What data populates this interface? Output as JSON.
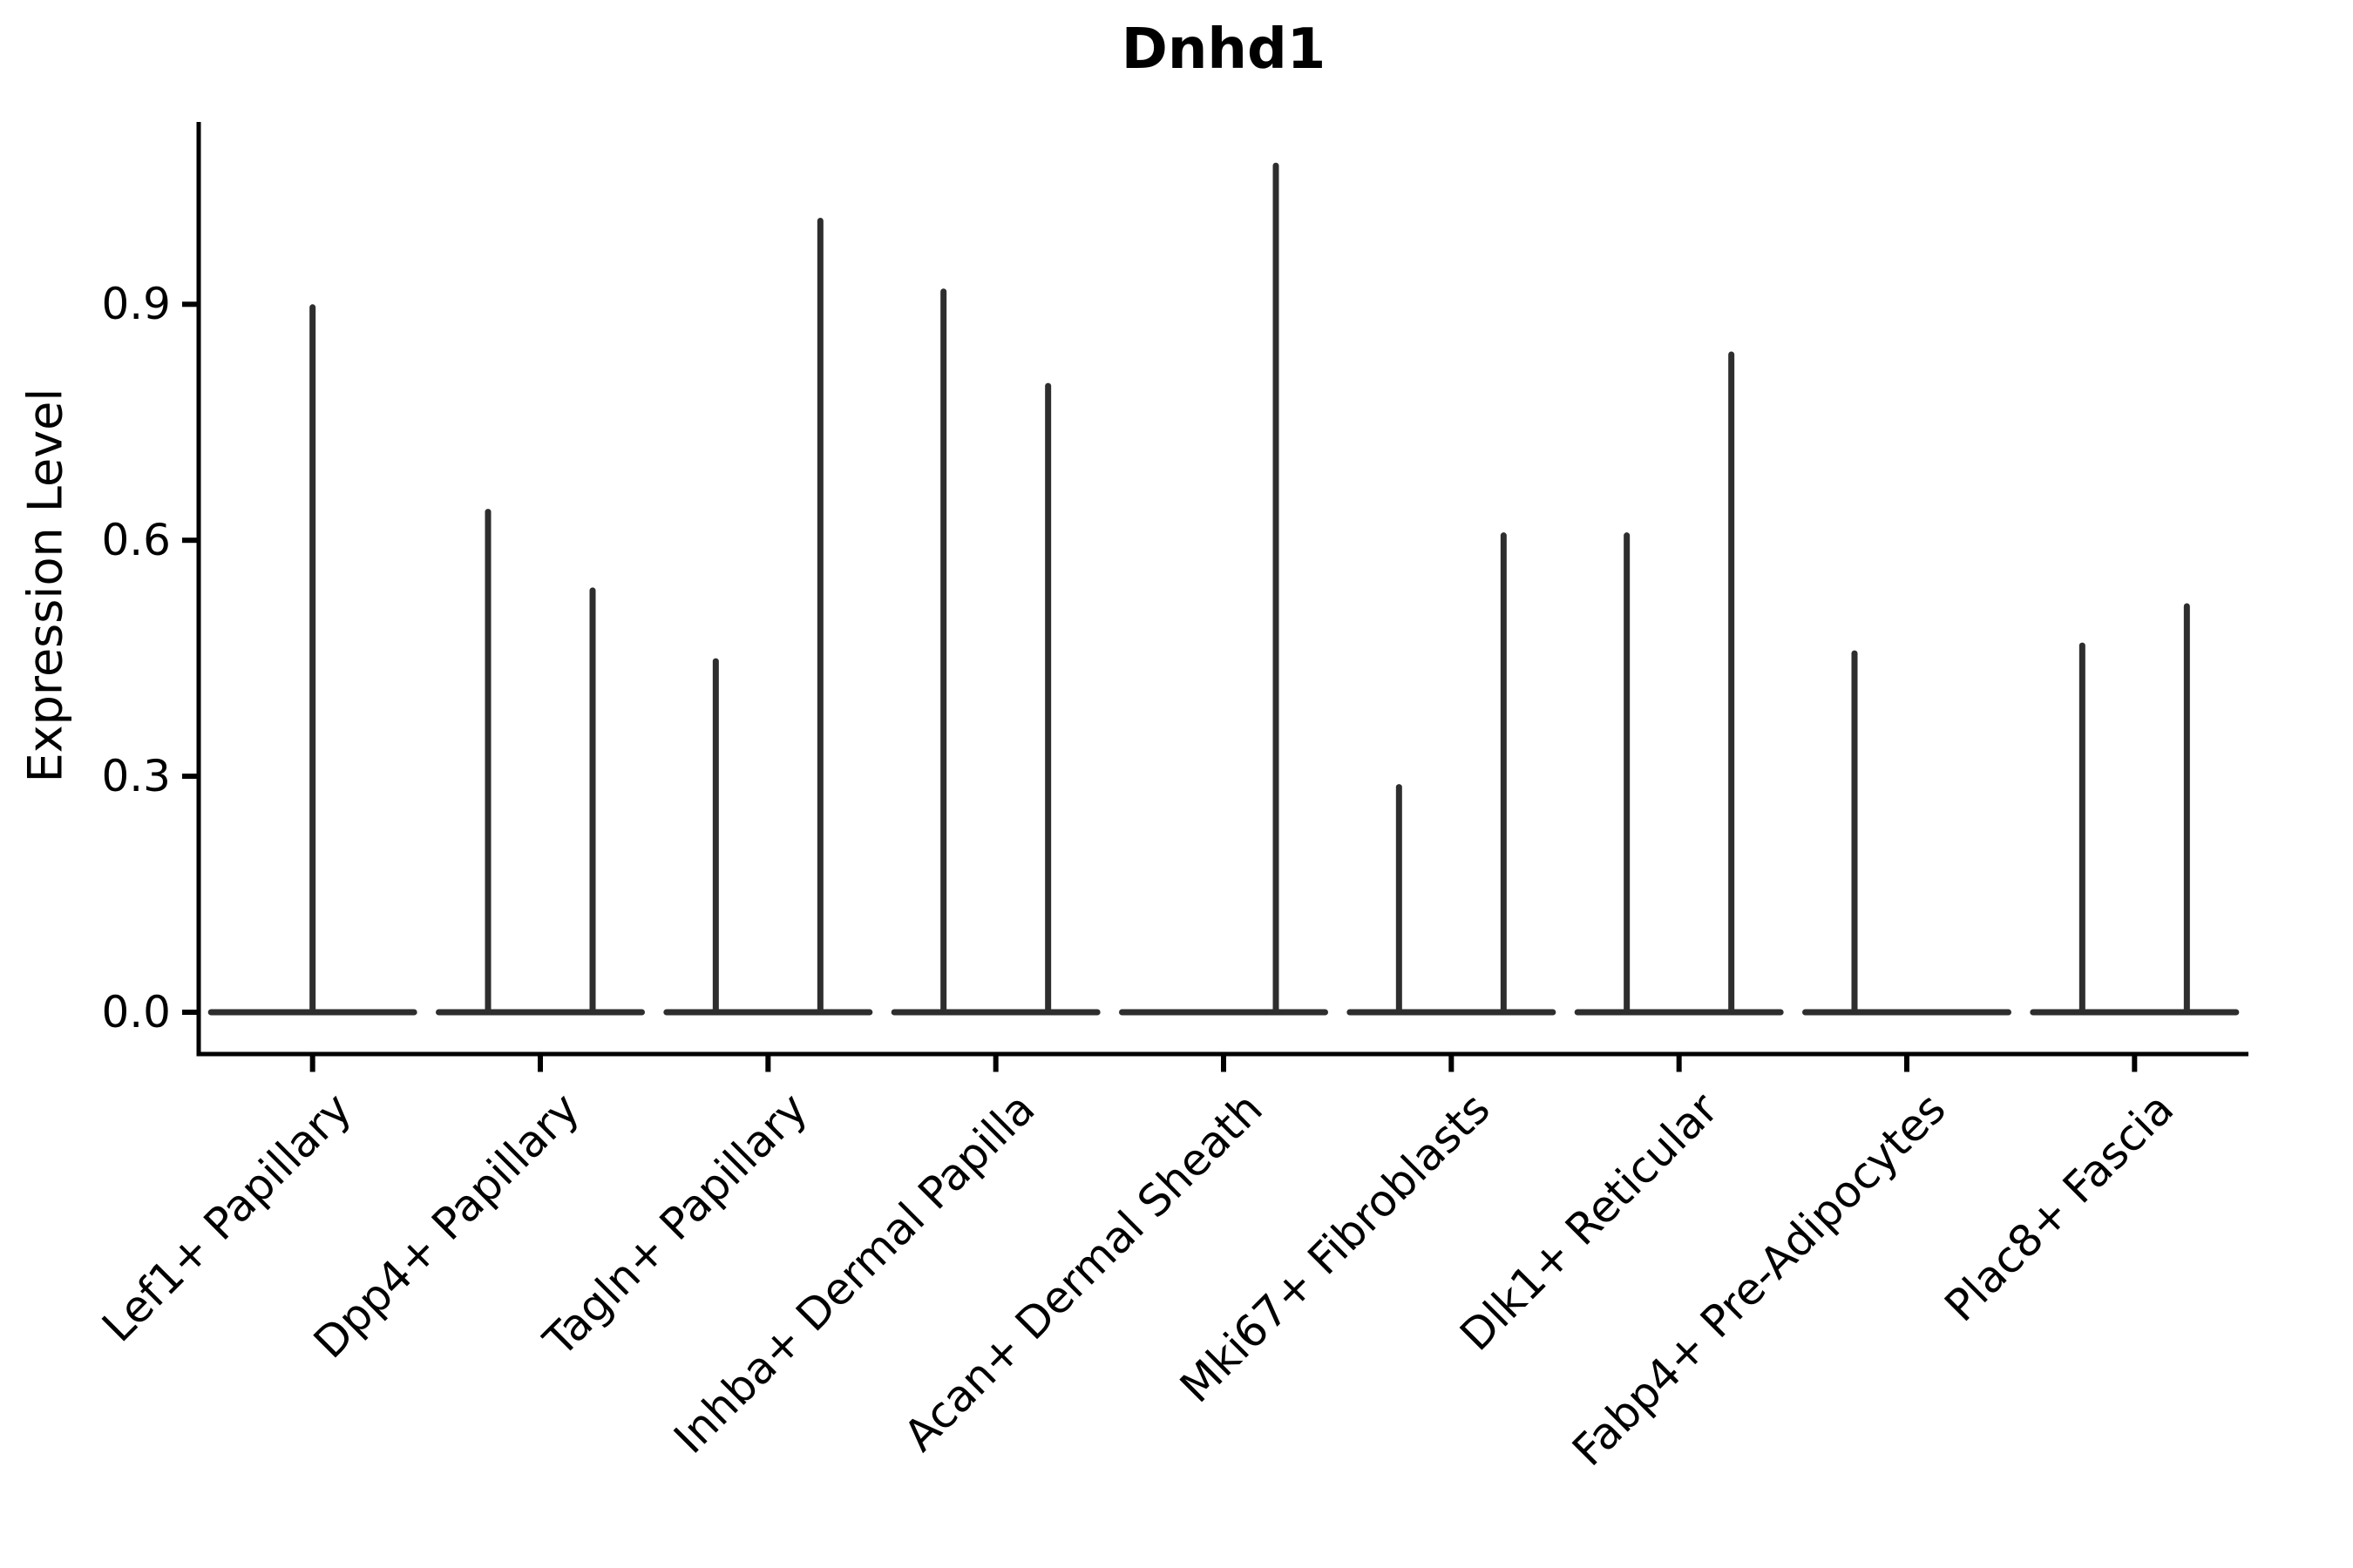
{
  "chart_data": {
    "type": "violin",
    "title": "Dnhd1",
    "xlabel": "",
    "ylabel": "Expression Level",
    "ylim": [
      -0.053,
      1.131
    ],
    "yticks": [
      0.0,
      0.3,
      0.6,
      0.9
    ],
    "ytick_labels": [
      "0.0",
      "0.3",
      "0.6",
      "0.9"
    ],
    "grid": false,
    "legend": null,
    "background_color": "#ffffff",
    "axis_color": "#000000",
    "violin_color": "#2e2e2e",
    "text_color": "#000000",
    "categories": [
      "Lef1+ Papillary",
      "Dpp4+ Papillary",
      "Tagln+ Papillary",
      "Inhba+ Dermal Papilla",
      "Acan+ Dermal Sheath",
      "Mki67+ Fibroblasts",
      "Dlk1+ Reticular",
      "Fabp4+ Pre-Adipocytes",
      "Plac8+ Fascia"
    ],
    "violins": [
      {
        "category": "Lef1+ Papillary",
        "spikes": [
          {
            "position": "center",
            "max_expression": 0.9
          }
        ]
      },
      {
        "category": "Dpp4+ Papillary",
        "spikes": [
          {
            "position": "left",
            "max_expression": 0.64
          },
          {
            "position": "right",
            "max_expression": 0.54
          }
        ]
      },
      {
        "category": "Tagln+ Papillary",
        "spikes": [
          {
            "position": "left",
            "max_expression": 0.45
          },
          {
            "position": "right",
            "max_expression": 1.01
          }
        ]
      },
      {
        "category": "Inhba+ Dermal Papilla",
        "spikes": [
          {
            "position": "left",
            "max_expression": 0.92
          },
          {
            "position": "right",
            "max_expression": 0.8
          }
        ]
      },
      {
        "category": "Acan+ Dermal Sheath",
        "spikes": [
          {
            "position": "left",
            "max_expression": 0
          },
          {
            "position": "right",
            "max_expression": 1.08
          }
        ]
      },
      {
        "category": "Mki67+ Fibroblasts",
        "spikes": [
          {
            "position": "left",
            "max_expression": 0.29
          },
          {
            "position": "right",
            "max_expression": 0.61
          }
        ]
      },
      {
        "category": "Dlk1+ Reticular",
        "spikes": [
          {
            "position": "left",
            "max_expression": 0.61
          },
          {
            "position": "right",
            "max_expression": 0.84
          }
        ]
      },
      {
        "category": "Fabp4+ Pre-Adipocytes",
        "spikes": [
          {
            "position": "left",
            "max_expression": 0.46
          },
          {
            "position": "right",
            "max_expression": 0
          }
        ]
      },
      {
        "category": "Plac8+ Fascia",
        "spikes": [
          {
            "position": "left",
            "max_expression": 0.47
          },
          {
            "position": "right",
            "max_expression": 0.52
          }
        ]
      }
    ]
  }
}
